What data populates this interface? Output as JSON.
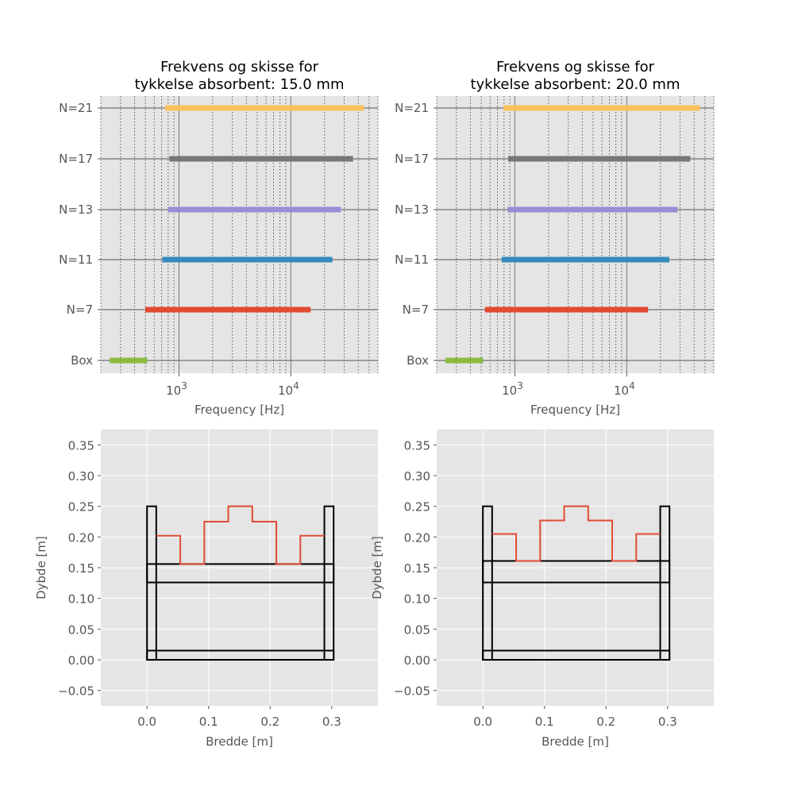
{
  "figure": {
    "background": "#ffffff",
    "axes_facecolor": "#e5e5e5"
  },
  "chart_data": [
    {
      "type": "range-bar",
      "title_line1": "Frekvens og skisse for",
      "title_line2": "tykkelse absorbent: 15.0 mm",
      "xlabel": "Frequency [Hz]",
      "ylabel": "",
      "xscale": "log",
      "xlim": [
        200,
        60000
      ],
      "xtick_labels": [
        {
          "base": "10",
          "exp": "3",
          "value": 1000
        },
        {
          "base": "10",
          "exp": "4",
          "value": 10000
        }
      ],
      "grid": "major solid, minor dotted",
      "categories": [
        "N=21",
        "N=17",
        "N=13",
        "N=11",
        "N=7",
        "Box"
      ],
      "bars": [
        {
          "label": "N=21",
          "start": 750,
          "end": 45000,
          "color": "#fbc15e"
        },
        {
          "label": "N=17",
          "start": 820,
          "end": 36000,
          "color": "#777777"
        },
        {
          "label": "N=13",
          "start": 800,
          "end": 28000,
          "color": "#988ed5"
        },
        {
          "label": "N=11",
          "start": 710,
          "end": 23500,
          "color": "#348abd"
        },
        {
          "label": "N=7",
          "start": 500,
          "end": 15000,
          "color": "#e24a33"
        },
        {
          "label": "Box",
          "start": 240,
          "end": 520,
          "color": "#8eba42"
        }
      ]
    },
    {
      "type": "range-bar",
      "title_line1": "Frekvens og skisse for",
      "title_line2": "tykkelse absorbent: 20.0 mm",
      "xlabel": "Frequency [Hz]",
      "ylabel": "",
      "xscale": "log",
      "xlim": [
        200,
        60000
      ],
      "xtick_labels": [
        {
          "base": "10",
          "exp": "3",
          "value": 1000
        },
        {
          "base": "10",
          "exp": "4",
          "value": 10000
        }
      ],
      "grid": "major solid, minor dotted",
      "categories": [
        "N=21",
        "N=17",
        "N=13",
        "N=11",
        "N=7",
        "Box"
      ],
      "bars": [
        {
          "label": "N=21",
          "start": 790,
          "end": 45000,
          "color": "#fbc15e"
        },
        {
          "label": "N=17",
          "start": 870,
          "end": 37000,
          "color": "#777777"
        },
        {
          "label": "N=13",
          "start": 860,
          "end": 28500,
          "color": "#988ed5"
        },
        {
          "label": "N=11",
          "start": 760,
          "end": 24000,
          "color": "#348abd"
        },
        {
          "label": "N=7",
          "start": 540,
          "end": 15500,
          "color": "#e24a33"
        },
        {
          "label": "Box",
          "start": 240,
          "end": 520,
          "color": "#8eba42"
        }
      ]
    },
    {
      "type": "line",
      "title": "",
      "xlabel": "Bredde [m]",
      "ylabel": "Dybde [m]",
      "xlim": [
        -0.075,
        0.375
      ],
      "ylim": [
        -0.075,
        0.375
      ],
      "xticks": [
        "0.0",
        "0.1",
        "0.2",
        "0.3"
      ],
      "yticks": [
        "−0.05",
        "0.00",
        "0.05",
        "0.10",
        "0.15",
        "0.20",
        "0.25",
        "0.30",
        "0.35"
      ],
      "grid": true,
      "profile": {
        "color": "#e24a33",
        "points": [
          [
            0.015,
            0.202
          ],
          [
            0.054,
            0.202
          ],
          [
            0.054,
            0.156
          ],
          [
            0.093,
            0.156
          ],
          [
            0.093,
            0.225
          ],
          [
            0.132,
            0.225
          ],
          [
            0.132,
            0.25
          ],
          [
            0.171,
            0.25
          ],
          [
            0.171,
            0.225
          ],
          [
            0.21,
            0.225
          ],
          [
            0.21,
            0.156
          ],
          [
            0.249,
            0.156
          ],
          [
            0.249,
            0.202
          ],
          [
            0.288,
            0.202
          ]
        ]
      },
      "box": {
        "color": "#000000",
        "outer_width": 0.303,
        "wall": 0.015,
        "height": 0.25,
        "bottom": 0.015,
        "plate_bottom": 0.126,
        "plate_top": 0.156
      }
    },
    {
      "type": "line",
      "title": "",
      "xlabel": "Bredde [m]",
      "ylabel": "Dybde [m]",
      "xlim": [
        -0.075,
        0.375
      ],
      "ylim": [
        -0.075,
        0.375
      ],
      "xticks": [
        "0.0",
        "0.1",
        "0.2",
        "0.3"
      ],
      "yticks": [
        "−0.05",
        "0.00",
        "0.05",
        "0.10",
        "0.15",
        "0.20",
        "0.25",
        "0.30",
        "0.35"
      ],
      "grid": true,
      "profile": {
        "color": "#e24a33",
        "points": [
          [
            0.015,
            0.205
          ],
          [
            0.054,
            0.205
          ],
          [
            0.054,
            0.161
          ],
          [
            0.093,
            0.161
          ],
          [
            0.093,
            0.227
          ],
          [
            0.132,
            0.227
          ],
          [
            0.132,
            0.25
          ],
          [
            0.171,
            0.25
          ],
          [
            0.171,
            0.227
          ],
          [
            0.21,
            0.227
          ],
          [
            0.21,
            0.161
          ],
          [
            0.249,
            0.161
          ],
          [
            0.249,
            0.205
          ],
          [
            0.288,
            0.205
          ]
        ]
      },
      "box": {
        "color": "#000000",
        "outer_width": 0.303,
        "wall": 0.015,
        "height": 0.25,
        "bottom": 0.015,
        "plate_bottom": 0.126,
        "plate_top": 0.161
      }
    }
  ]
}
